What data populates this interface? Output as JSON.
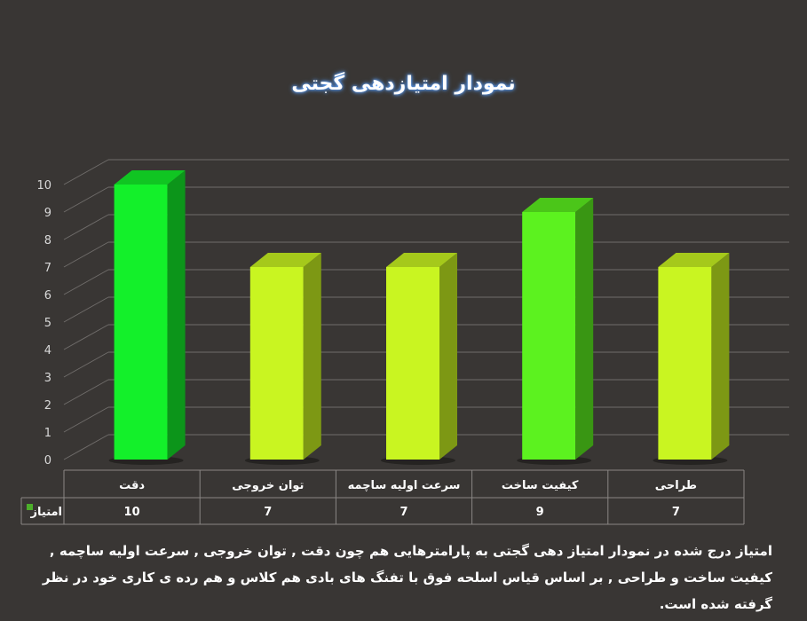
{
  "chart_data": {
    "type": "bar",
    "title": "نمودار امتیازدهی گجتی",
    "categories": [
      "دقت",
      "توان خروجی",
      "سرعت اولیه ساچمه",
      "کیفیت ساخت",
      "طراحی"
    ],
    "series": [
      {
        "name": "امتیاز",
        "values": [
          10,
          7,
          7,
          9,
          7
        ]
      }
    ],
    "ylim": [
      0,
      10
    ],
    "yticks": [
      0,
      1,
      2,
      3,
      4,
      5,
      6,
      7,
      8,
      9,
      10
    ],
    "grid": true,
    "data_table": true,
    "colors": {
      "max": "#13f02a",
      "high": "#5cf21f",
      "normal": "#c9f521",
      "legend_key": "#4caf2a"
    }
  },
  "caption": "امتیاز درج شده در نمودار امتیاز دهی گجتی به پارامترهایی هم چون دقت , توان خروجی , سرعت اولیه ساچمه , کیفیت ساخت و طراحی , بر اساس قیاس اسلحه فوق با تفنگ های بادی هم کلاس و هم رده ی کاری خود در نظر گرفته شده است."
}
